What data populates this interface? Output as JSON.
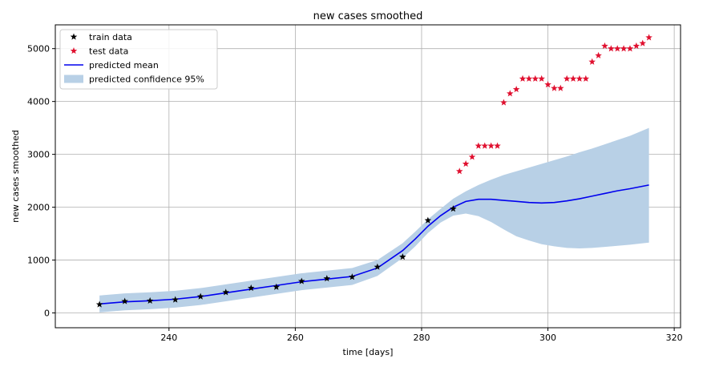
{
  "chart_data": {
    "type": "scatter",
    "title": "new cases smoothed",
    "xlabel": "time [days]",
    "ylabel": "new cases smoothed",
    "xlim": [
      222,
      321
    ],
    "ylim": [
      -280,
      5450
    ],
    "xticks": [
      240,
      260,
      280,
      300,
      320
    ],
    "yticks": [
      0,
      1000,
      2000,
      3000,
      4000,
      5000
    ],
    "grid": true,
    "legend_position": "top-left",
    "legend": [
      {
        "label": "train data",
        "kind": "marker",
        "color": "#000000"
      },
      {
        "label": "test data",
        "kind": "marker",
        "color": "#e0102f"
      },
      {
        "label": "predicted mean",
        "kind": "line",
        "color": "#0000ee"
      },
      {
        "label": "predicted confidence 95%",
        "kind": "band",
        "color": "#b8d0e6"
      }
    ],
    "train_data": {
      "x": [
        229,
        233,
        237,
        241,
        245,
        249,
        253,
        257,
        261,
        265,
        269,
        273,
        277,
        281,
        285
      ],
      "y": [
        160,
        220,
        230,
        250,
        310,
        390,
        470,
        490,
        600,
        650,
        680,
        870,
        1060,
        1750,
        1970
      ]
    },
    "test_data": {
      "x": [
        286,
        287,
        288,
        289,
        290,
        291,
        292,
        293,
        294,
        295,
        296,
        297,
        298,
        299,
        300,
        301,
        302,
        303,
        304,
        305,
        306,
        307,
        308,
        309,
        310,
        311,
        312,
        313,
        314,
        315,
        316
      ],
      "y": [
        2680,
        2820,
        2950,
        3160,
        3160,
        3160,
        3160,
        3980,
        4150,
        4230,
        4430,
        4430,
        4430,
        4430,
        4320,
        4250,
        4250,
        4430,
        4430,
        4430,
        4430,
        4750,
        4870,
        5050,
        5000,
        5000,
        5000,
        5000,
        5050,
        5100,
        5210
      ]
    },
    "predicted_mean": {
      "x": [
        229,
        233,
        237,
        241,
        245,
        249,
        253,
        257,
        261,
        265,
        269,
        273,
        277,
        279,
        281,
        283,
        285,
        287,
        289,
        291,
        293,
        295,
        297,
        299,
        301,
        303,
        305,
        307,
        309,
        311,
        313,
        316
      ],
      "y": [
        170,
        210,
        230,
        260,
        310,
        380,
        450,
        520,
        590,
        640,
        690,
        850,
        1180,
        1400,
        1640,
        1840,
        2000,
        2110,
        2150,
        2150,
        2130,
        2110,
        2090,
        2080,
        2090,
        2120,
        2160,
        2210,
        2260,
        2310,
        2350,
        2420
      ]
    },
    "confidence_upper": {
      "x": [
        229,
        233,
        237,
        241,
        245,
        249,
        253,
        257,
        261,
        265,
        269,
        273,
        277,
        279,
        281,
        283,
        285,
        287,
        289,
        291,
        293,
        295,
        297,
        299,
        301,
        303,
        305,
        307,
        309,
        311,
        313,
        316
      ],
      "y": [
        330,
        370,
        390,
        420,
        470,
        540,
        610,
        680,
        750,
        800,
        850,
        1000,
        1320,
        1540,
        1770,
        1970,
        2160,
        2300,
        2420,
        2520,
        2610,
        2680,
        2750,
        2820,
        2890,
        2960,
        3040,
        3110,
        3190,
        3270,
        3350,
        3500
      ]
    },
    "confidence_lower": {
      "x": [
        229,
        233,
        237,
        241,
        245,
        249,
        253,
        257,
        261,
        265,
        269,
        273,
        277,
        279,
        281,
        283,
        285,
        287,
        289,
        291,
        293,
        295,
        297,
        299,
        301,
        303,
        305,
        307,
        309,
        311,
        313,
        316
      ],
      "y": [
        10,
        50,
        70,
        100,
        150,
        220,
        290,
        360,
        430,
        480,
        530,
        700,
        1040,
        1260,
        1510,
        1710,
        1840,
        1880,
        1830,
        1720,
        1580,
        1450,
        1370,
        1300,
        1260,
        1230,
        1220,
        1230,
        1250,
        1270,
        1290,
        1330
      ]
    }
  }
}
